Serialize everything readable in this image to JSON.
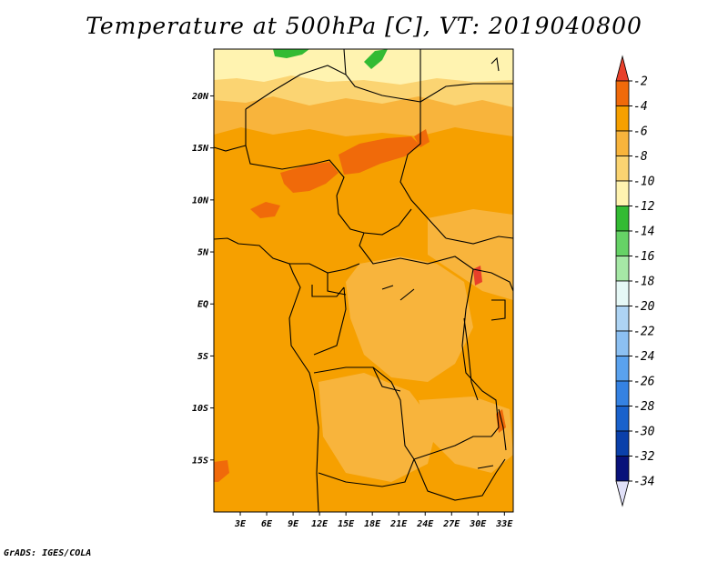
{
  "title": "Temperature at 500hPa [C], VT: 2019040800",
  "footer": "GrADS: IGES/COLA",
  "map": {
    "lat_labels": [
      "20N",
      "15N",
      "10N",
      "5N",
      "EQ",
      "5S",
      "10S",
      "15S"
    ],
    "lat_values": [
      20,
      15,
      10,
      5,
      0,
      -5,
      -10,
      -15
    ],
    "lon_labels": [
      "3E",
      "6E",
      "9E",
      "12E",
      "15E",
      "18E",
      "21E",
      "24E",
      "27E",
      "30E",
      "33E"
    ],
    "lon_values": [
      3,
      6,
      9,
      12,
      15,
      18,
      21,
      24,
      27,
      30,
      33
    ],
    "lat_range": [
      -20,
      24.5
    ],
    "lon_range": [
      0,
      34
    ]
  },
  "colorbar": {
    "labels": [
      "-2",
      "-4",
      "-6",
      "-8",
      "-10",
      "-12",
      "-14",
      "-16",
      "-18",
      "-20",
      "-22",
      "-24",
      "-26",
      "-28",
      "-30",
      "-32",
      "-34"
    ],
    "colors_top_to_bottom": [
      "#e8402a",
      "#f06a0a",
      "#f6a000",
      "#f8b43c",
      "#fbd472",
      "#fff3b0",
      "#33bb33",
      "#66d266",
      "#a6e8a6",
      "#e6f8f6",
      "#aed4f4",
      "#8cc0f2",
      "#5aa2ee",
      "#3582e2",
      "#1a62cc",
      "#0a40aa",
      "#08127a",
      "#e0e0f8"
    ]
  },
  "field_colors": {
    "warm_core": "#f06a0a",
    "main": "#f6a000",
    "lighter": "#f8b43c",
    "pale": "#fbd472",
    "palest": "#fff3b0",
    "green": "#33bb33",
    "hot_spot": "#e8402a"
  }
}
